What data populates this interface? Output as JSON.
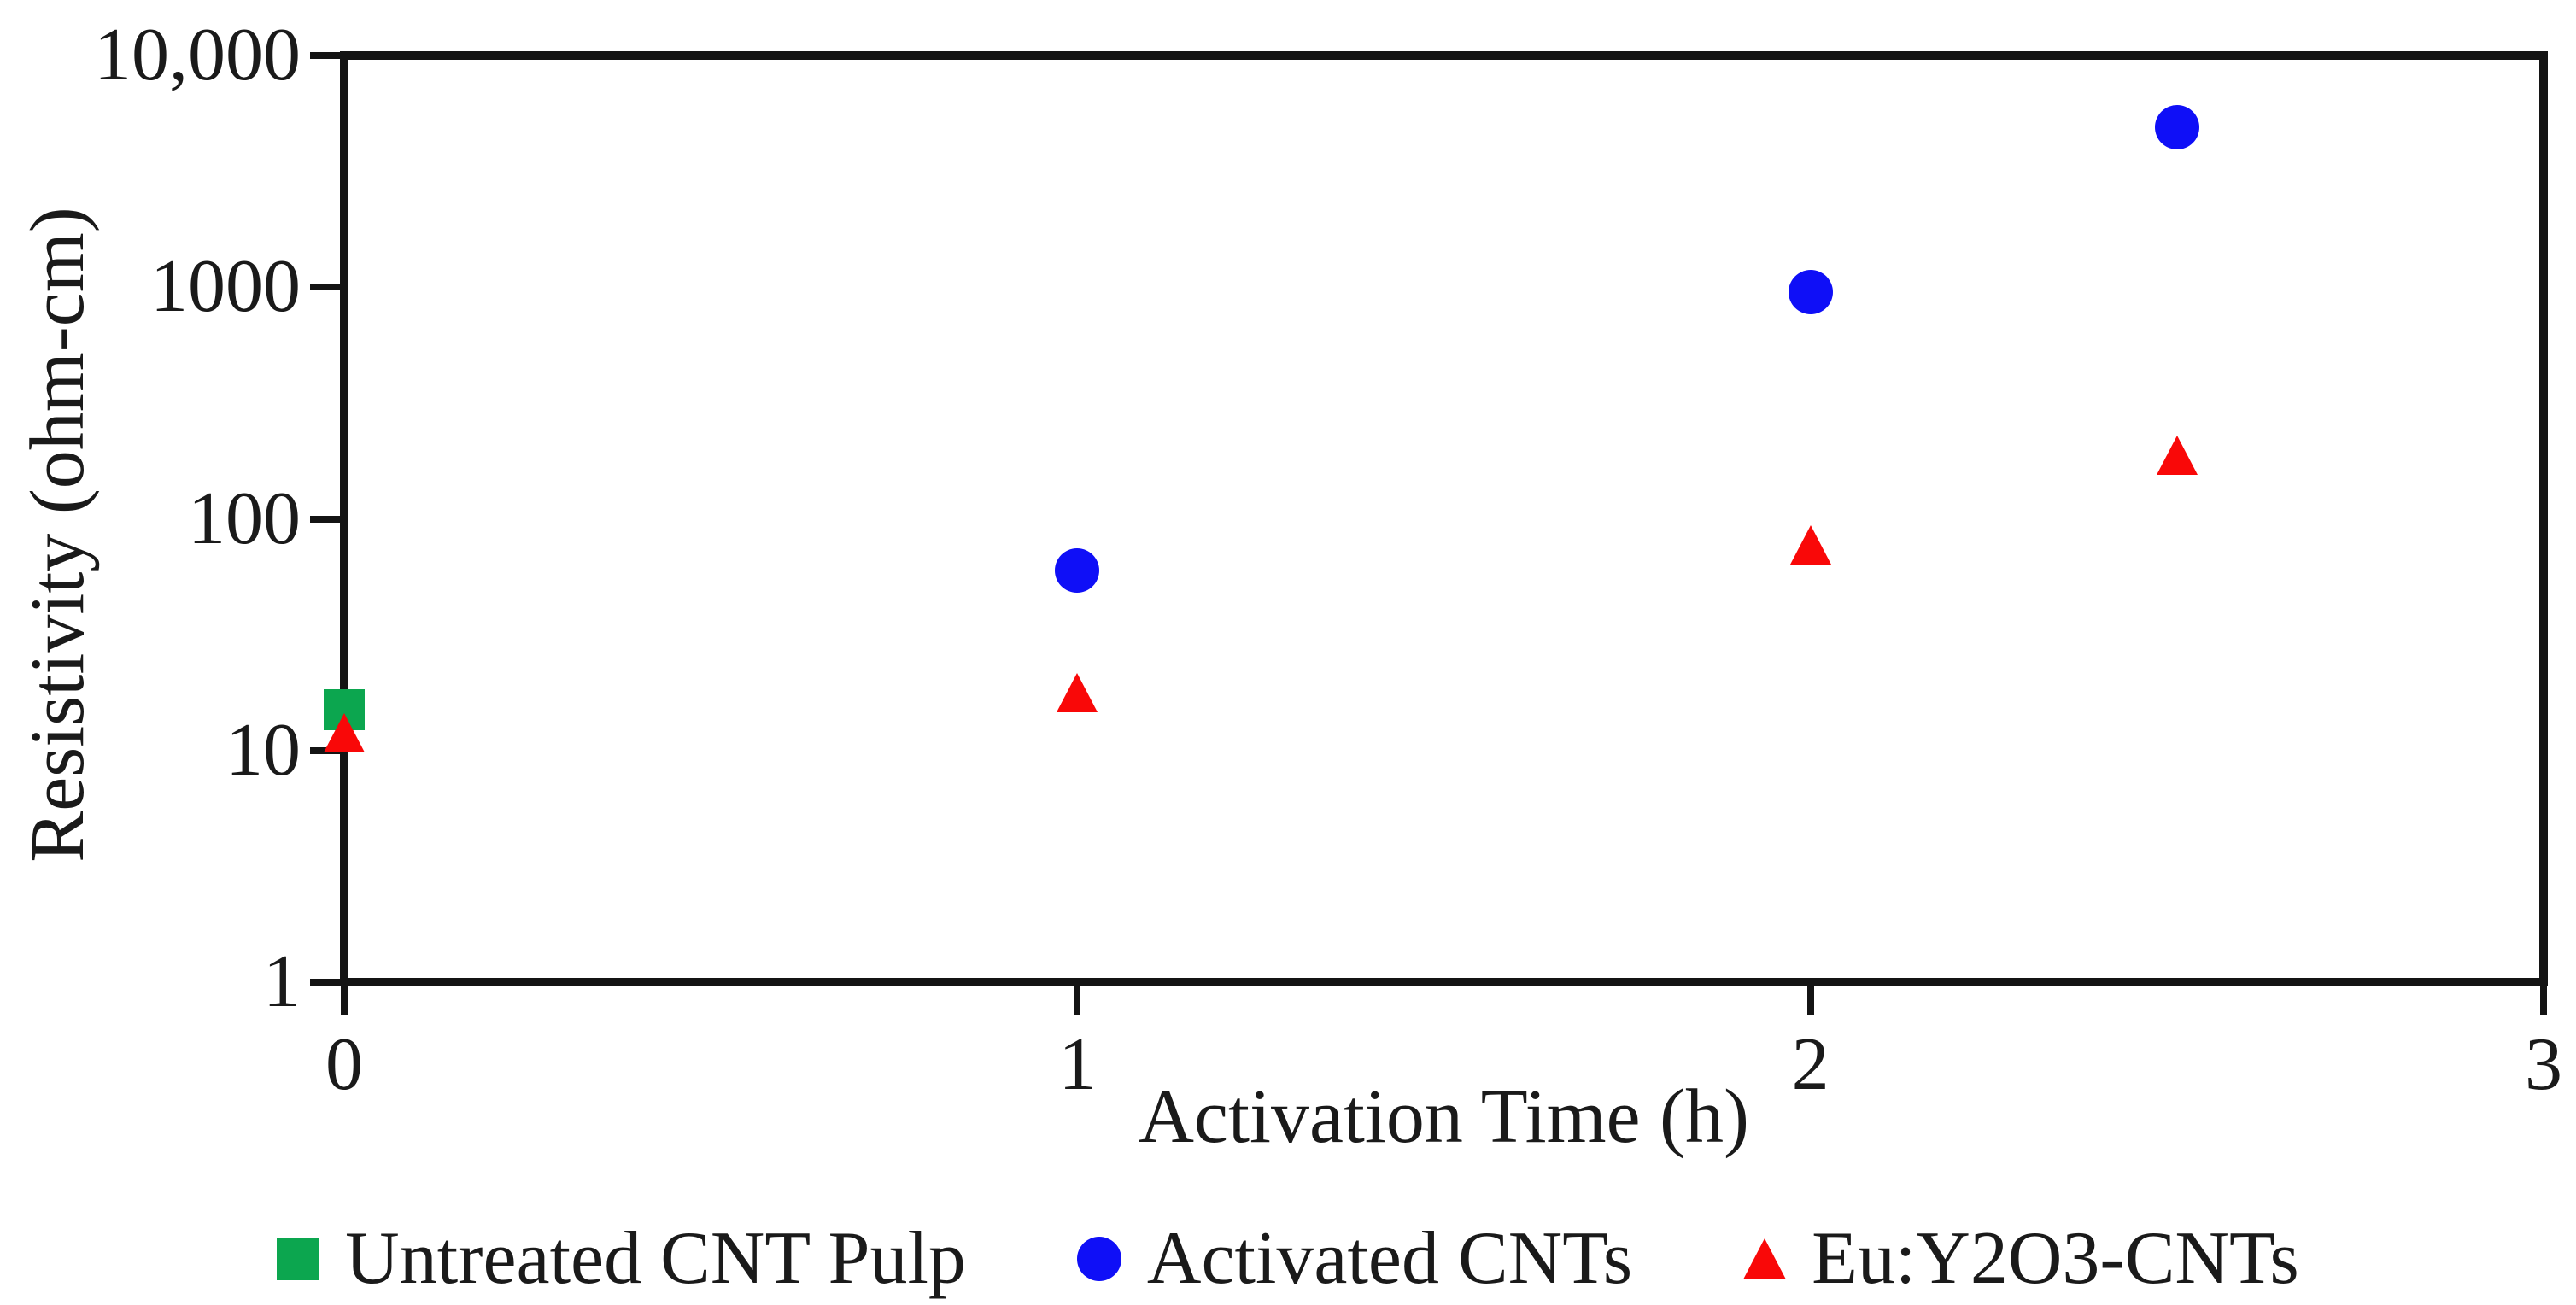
{
  "colors": {
    "untreated": "#0ca64f",
    "activated": "#0f0ff7",
    "eu_y2o3": "#f90808",
    "axis": "#141414",
    "text": "#1a1a1a",
    "background": "#ffffff"
  },
  "chart_data": {
    "type": "scatter",
    "title": "",
    "xlabel": "Activation Time (h)",
    "ylabel": "Resistivity (ohm-cm)",
    "x_scale": "linear",
    "y_scale": "log",
    "xlim": [
      0,
      3
    ],
    "ylim": [
      1,
      10000
    ],
    "x_ticks": [
      0,
      1,
      2,
      3
    ],
    "x_tick_labels": [
      "0",
      "1",
      "2",
      "3"
    ],
    "y_ticks": [
      1,
      10,
      100,
      1000,
      10000
    ],
    "y_tick_labels": [
      "1",
      "10",
      "100",
      "1000",
      "10,000"
    ],
    "grid": false,
    "legend_position": "bottom",
    "series": [
      {
        "name": "Untreated CNT Pulp",
        "marker": "square",
        "color_key": "untreated",
        "points": [
          {
            "x": 0,
            "y": 15
          }
        ]
      },
      {
        "name": "Activated CNTs",
        "marker": "circle",
        "color_key": "activated",
        "points": [
          {
            "x": 1,
            "y": 60
          },
          {
            "x": 2,
            "y": 950
          },
          {
            "x": 2.5,
            "y": 4900
          }
        ]
      },
      {
        "name": "Eu:Y2O3-CNTs",
        "marker": "triangle",
        "color_key": "eu_y2o3",
        "points": [
          {
            "x": 0,
            "y": 12
          },
          {
            "x": 1,
            "y": 18
          },
          {
            "x": 2,
            "y": 78
          },
          {
            "x": 2.5,
            "y": 190
          }
        ]
      }
    ]
  }
}
